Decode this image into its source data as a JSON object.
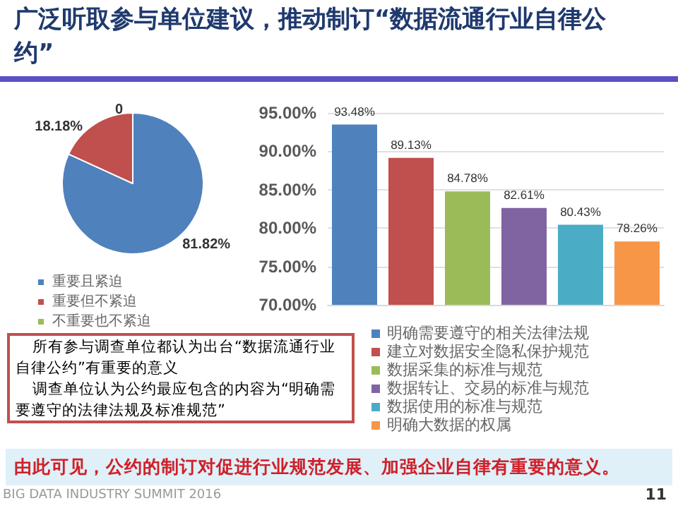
{
  "chart_data": [
    {
      "type": "pie",
      "title": "广泛听取参与单位建议，推动制订“数据流通行业自律公约”",
      "categories": [
        "重要且紧迫",
        "重要但不紧迫",
        "不重要也不紧迫"
      ],
      "values": [
        81.82,
        18.18,
        0
      ],
      "colors": [
        "#4f81bd",
        "#c0504d",
        "#9bbb59"
      ],
      "value_labels": [
        "81.82%",
        "18.18%",
        "0"
      ],
      "legend": "bottom left",
      "annotations": [
        "所有参与调查单位都认为出台“数据流通行业自律公约”有重要的意义",
        "调查单位认为公约最应包含的内容为“明确需要遵守的法律法规及标准规范”",
        "由此可见，公约的制订对促进行业规范发展、加强企业自律有重要的意义。",
        "BIG DATA INDUSTRY SUMMIT 2016",
        "11"
      ]
    },
    {
      "type": "bar",
      "categories": [
        null
      ],
      "series": [
        {
          "name": "明确需要遵守的相关法律法规",
          "color": "#4f81bd",
          "values": [
            93.48
          ],
          "value_labels": [
            "93.48%"
          ]
        },
        {
          "name": "建立对数据安全隐私保护规范",
          "color": "#c0504d",
          "values": [
            89.13
          ],
          "value_labels": [
            "89.13%"
          ]
        },
        {
          "name": "数据采集的标准与规范",
          "color": "#9bbb59",
          "values": [
            84.78
          ],
          "value_labels": [
            "84.78%"
          ]
        },
        {
          "name": "数据转让、交易的标准与规范",
          "color": "#8064a2",
          "values": [
            82.61
          ],
          "value_labels": [
            "82.61%"
          ]
        },
        {
          "name": "数据使用的标准与规范",
          "color": "#4bacc6",
          "values": [
            80.43
          ],
          "value_labels": [
            "80.43%"
          ]
        },
        {
          "name": "明确大数据的权属",
          "color": "#f79646",
          "values": [
            78.26
          ],
          "value_labels": [
            "78.26%"
          ]
        }
      ],
      "ylim": [
        70,
        95
      ],
      "yticks": [
        {
          "value": 70,
          "label": "70.00%"
        },
        {
          "value": 75,
          "label": "75.00%"
        },
        {
          "value": 80,
          "label": "80.00%"
        },
        {
          "value": 85,
          "label": "85.00%"
        },
        {
          "value": 90,
          "label": "90.00%"
        },
        {
          "value": 95,
          "label": "95.00%"
        }
      ],
      "grid": "y",
      "legend": "bottom"
    }
  ]
}
